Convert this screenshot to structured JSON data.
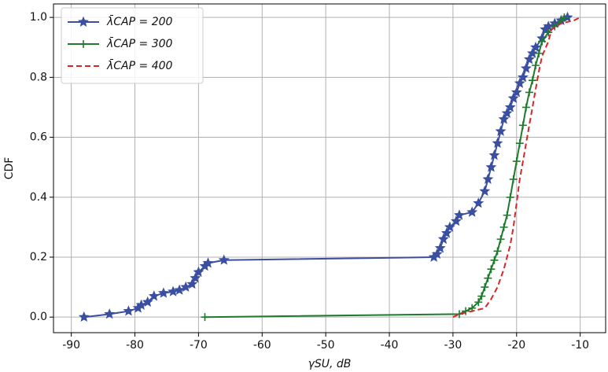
{
  "chart_data": {
    "type": "line",
    "x_label": "γSU, dB",
    "y_label": "CDF",
    "xlim": [
      -92.8,
      -6
    ],
    "ylim": [
      -0.052,
      1.045
    ],
    "xticks": [
      -90,
      -80,
      -70,
      -60,
      -50,
      -40,
      -30,
      -20,
      -10
    ],
    "yticks": [
      {
        "value": 0,
        "label": "0.0"
      },
      {
        "value": 0.2,
        "label": "0.2"
      },
      {
        "value": 0.4,
        "label": "0.4"
      },
      {
        "value": 0.6,
        "label": "0.6"
      },
      {
        "value": 0.8,
        "label": "0.8"
      },
      {
        "value": 1,
        "label": "1.0"
      }
    ],
    "grid": true,
    "legend": "upper left",
    "series": [
      {
        "name": "λ̄CAP = 200",
        "color": "#3a4fa0",
        "marker": "star",
        "dash": "solid",
        "x": [
          -88,
          -84,
          -81,
          -79.5,
          -79,
          -78,
          -77,
          -75.5,
          -74,
          -73,
          -72,
          -71,
          -70.5,
          -70,
          -69,
          -68.5,
          -66,
          -33,
          -32.5,
          -32,
          -31.5,
          -31,
          -30.5,
          -29.5,
          -29,
          -27,
          -26,
          -25,
          -24.5,
          -24,
          -23.5,
          -23,
          -22.5,
          -22,
          -21.5,
          -21,
          -20.5,
          -20,
          -19.5,
          -19,
          -18.5,
          -18,
          -17.5,
          -17,
          -16,
          -15.5,
          -15,
          -14,
          -13,
          -12
        ],
        "values": [
          0,
          0.01,
          0.02,
          0.03,
          0.04,
          0.05,
          0.07,
          0.08,
          0.085,
          0.09,
          0.1,
          0.11,
          0.13,
          0.15,
          0.17,
          0.18,
          0.19,
          0.2,
          0.21,
          0.23,
          0.26,
          0.28,
          0.3,
          0.32,
          0.34,
          0.35,
          0.38,
          0.42,
          0.46,
          0.5,
          0.54,
          0.58,
          0.62,
          0.66,
          0.68,
          0.7,
          0.73,
          0.75,
          0.78,
          0.8,
          0.83,
          0.86,
          0.88,
          0.9,
          0.93,
          0.96,
          0.97,
          0.98,
          0.99,
          1
        ]
      },
      {
        "name": "λ̄CAP = 300",
        "color": "#1f7a2e",
        "marker": "plus",
        "dash": "solid",
        "x": [
          -69,
          -29,
          -28,
          -27,
          -26,
          -25.5,
          -25,
          -24.5,
          -24,
          -23.5,
          -23,
          -22.5,
          -22,
          -21.5,
          -21,
          -20.5,
          -20,
          -19.5,
          -19,
          -18.5,
          -18,
          -17.5,
          -17,
          -16.5,
          -16,
          -15,
          -14,
          -13,
          -12.5
        ],
        "values": [
          0,
          0.01,
          0.02,
          0.03,
          0.05,
          0.07,
          0.1,
          0.13,
          0.16,
          0.19,
          0.22,
          0.26,
          0.3,
          0.34,
          0.4,
          0.46,
          0.52,
          0.58,
          0.64,
          0.7,
          0.75,
          0.79,
          0.84,
          0.88,
          0.92,
          0.95,
          0.97,
          0.99,
          1
        ]
      },
      {
        "name": "λ̄CAP = 400",
        "color": "#d62728",
        "marker": "none",
        "dash": "dashed",
        "x": [
          -30,
          -29,
          -27,
          -25,
          -24,
          -23,
          -22,
          -21,
          -20.5,
          -20,
          -19.5,
          -19,
          -18.5,
          -18,
          -17.5,
          -17,
          -16.5,
          -16,
          -15,
          -14.5,
          -13,
          -11,
          -10
        ],
        "values": [
          0,
          0.01,
          0.02,
          0.03,
          0.06,
          0.1,
          0.16,
          0.24,
          0.3,
          0.38,
          0.46,
          0.52,
          0.58,
          0.64,
          0.7,
          0.76,
          0.82,
          0.87,
          0.92,
          0.96,
          0.98,
          0.99,
          1
        ]
      }
    ]
  }
}
